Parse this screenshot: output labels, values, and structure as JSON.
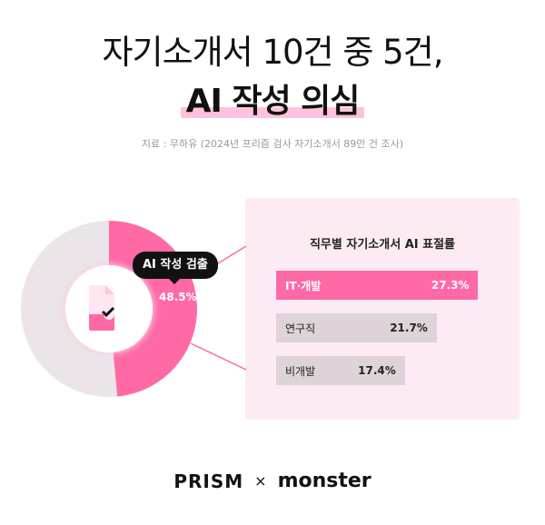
{
  "title_line1": "자기소개서 10건 중 5건,",
  "title_line2": "AI 작성 의심",
  "source": "지료 : 무하유 (2024년 프리즘 검사 자기소개서 89만 건 조사)",
  "colors": {
    "accent": "#ff69a6",
    "gray": "#ebe4e8",
    "panel": "#fdebf3",
    "bar_gray": "#ddd3d8"
  },
  "chart_data": [
    {
      "type": "pie",
      "donut": true,
      "slices": [
        {
          "label": "AI 작성 검출",
          "value": 48.5,
          "color": "#ff69a6"
        },
        {
          "value": 51.5,
          "color": "#ebe4e8"
        }
      ],
      "callout": {
        "label": "AI 작성 검출",
        "value_label": "48.5%"
      },
      "center_icon": "document-check-icon"
    },
    {
      "type": "bar",
      "orientation": "horizontal",
      "title": "직무별 자기소개서 AI 표절률",
      "categories": [
        "IT·개발",
        "연구직",
        "비개발"
      ],
      "values": [
        27.3,
        21.7,
        17.4
      ],
      "value_labels": [
        "27.3%",
        "21.7%",
        "17.4%"
      ],
      "highlight": "IT·개발"
    }
  ],
  "footer": {
    "brand1": "PRISM",
    "separator": "×",
    "brand2": "monster"
  }
}
